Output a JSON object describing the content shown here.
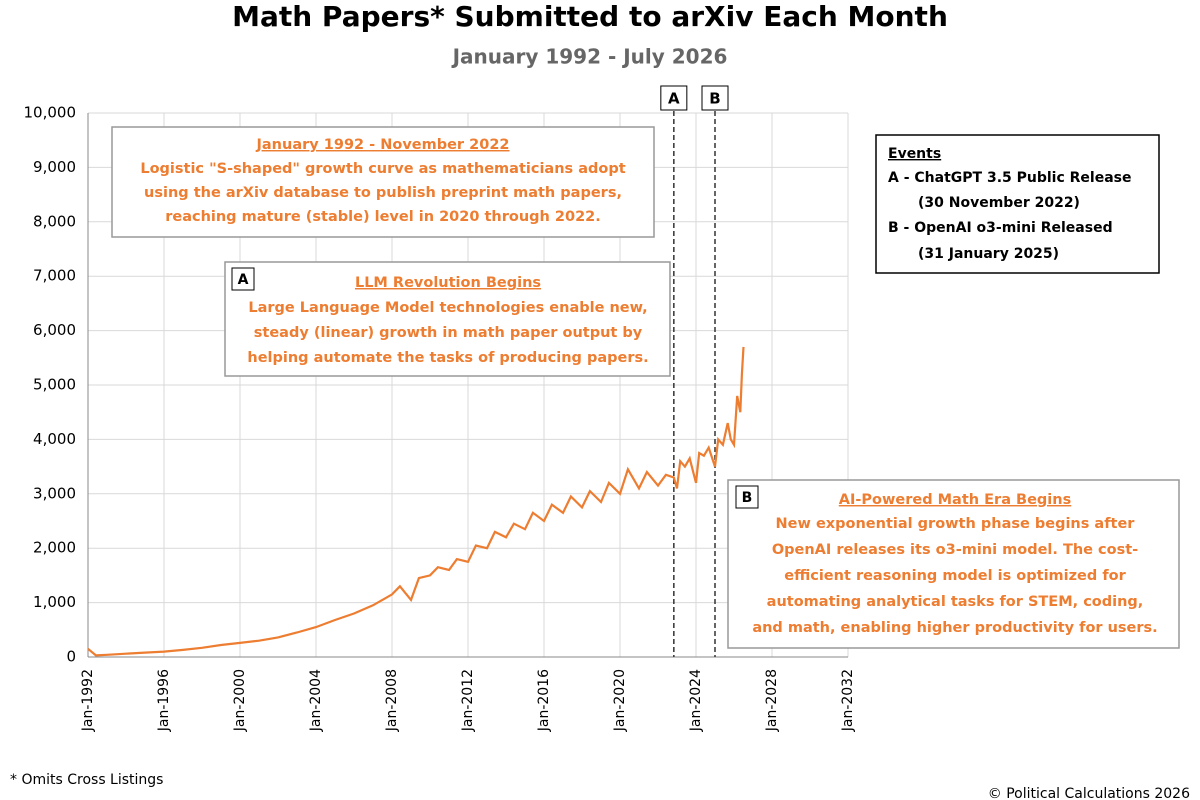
{
  "chart_data": {
    "type": "line",
    "title": "Math Papers* Submitted to arXiv Each Month",
    "subtitle": "January 1992 - July 2026",
    "footnote": "* Omits Cross Listings",
    "credit": "© Political Calculations 2026",
    "x": [
      "1992-01",
      "1992-06",
      "1993-01",
      "1994-01",
      "1995-01",
      "1996-01",
      "1997-01",
      "1998-01",
      "1999-01",
      "2000-01",
      "2001-01",
      "2002-01",
      "2003-01",
      "2004-01",
      "2005-01",
      "2006-01",
      "2007-01",
      "2008-01",
      "2008-06",
      "2009-01",
      "2009-06",
      "2010-01",
      "2010-06",
      "2011-01",
      "2011-06",
      "2012-01",
      "2012-06",
      "2013-01",
      "2013-06",
      "2014-01",
      "2014-06",
      "2015-01",
      "2015-06",
      "2016-01",
      "2016-06",
      "2017-01",
      "2017-06",
      "2018-01",
      "2018-06",
      "2019-01",
      "2019-06",
      "2020-01",
      "2020-06",
      "2021-01",
      "2021-06",
      "2022-01",
      "2022-06",
      "2022-11",
      "2023-01",
      "2023-03",
      "2023-06",
      "2023-09",
      "2024-01",
      "2024-03",
      "2024-06",
      "2024-09",
      "2025-01",
      "2025-03",
      "2025-06",
      "2025-09",
      "2025-11",
      "2026-01",
      "2026-03",
      "2026-05",
      "2026-06",
      "2026-07"
    ],
    "series": [
      {
        "name": "Math papers",
        "color": "#ed7d31",
        "values": [
          150,
          30,
          40,
          60,
          80,
          100,
          130,
          170,
          220,
          260,
          300,
          360,
          450,
          550,
          680,
          800,
          950,
          1150,
          1300,
          1050,
          1450,
          1500,
          1650,
          1600,
          1800,
          1750,
          2050,
          2000,
          2300,
          2200,
          2450,
          2350,
          2650,
          2500,
          2800,
          2650,
          2950,
          2750,
          3050,
          2850,
          3200,
          3000,
          3450,
          3100,
          3400,
          3150,
          3350,
          3300,
          3100,
          3600,
          3500,
          3650,
          3200,
          3750,
          3700,
          3850,
          3500,
          4000,
          3900,
          4300,
          4000,
          3900,
          4800,
          4500,
          5200,
          5700
        ]
      }
    ],
    "xlim": [
      "1992-01",
      "2032-01"
    ],
    "xticks": [
      {
        "value": "1992-01",
        "label": "Jan-1992"
      },
      {
        "value": "1996-01",
        "label": "Jan-1996"
      },
      {
        "value": "2000-01",
        "label": "Jan-2000"
      },
      {
        "value": "2004-01",
        "label": "Jan-2004"
      },
      {
        "value": "2008-01",
        "label": "Jan-2008"
      },
      {
        "value": "2012-01",
        "label": "Jan-2012"
      },
      {
        "value": "2016-01",
        "label": "Jan-2016"
      },
      {
        "value": "2020-01",
        "label": "Jan-2020"
      },
      {
        "value": "2024-01",
        "label": "Jan-2024"
      },
      {
        "value": "2028-01",
        "label": "Jan-2028"
      },
      {
        "value": "2032-01",
        "label": "Jan-2032"
      }
    ],
    "ylim": [
      0,
      10000
    ],
    "yticks": [
      0,
      {
        "value": 1000,
        "label": "1,000"
      },
      {
        "value": 2000,
        "label": "2,000"
      },
      {
        "value": 3000,
        "label": "3,000"
      },
      {
        "value": 4000,
        "label": "4,000"
      },
      {
        "value": 5000,
        "label": "5,000"
      },
      {
        "value": 6000,
        "label": "6,000"
      },
      {
        "value": 7000,
        "label": "7,000"
      },
      {
        "value": 8000,
        "label": "8,000"
      },
      {
        "value": 9000,
        "label": "9,000"
      },
      {
        "value": 10000,
        "label": "10,000"
      }
    ],
    "grid": true,
    "events": [
      {
        "x": "2022-11",
        "label": "A"
      },
      {
        "x": "2025-01",
        "label": "B"
      }
    ],
    "events_box": {
      "title": "Events",
      "lines": [
        "A - ChatGPT 3.5 Public Release",
        "(30 November 2022)",
        "B - OpenAI o3-mini Released",
        "(31 January 2025)"
      ]
    },
    "annotations": [
      {
        "heading": "January 1992 - November 2022",
        "lines": [
          "Logistic \"S-shaped\" growth curve as mathematicians adopt",
          "using the arXiv database to publish preprint math papers,",
          "reaching mature (stable) level in 2020 through 2022."
        ]
      },
      {
        "tag": "A",
        "heading": "LLM Revolution Begins",
        "lines": [
          "Large Language Model technologies enable new,",
          "steady (linear) growth in math paper output by",
          "helping automate the tasks of producing papers."
        ]
      },
      {
        "tag": "B",
        "heading": "AI-Powered Math Era Begins",
        "lines": [
          "New exponential growth phase begins after",
          "OpenAI releases its o3-mini model. The cost-",
          "efficient reasoning model is optimized for",
          "automating analytical tasks for STEM, coding,",
          "and math, enabling higher productivity for users."
        ]
      }
    ]
  }
}
